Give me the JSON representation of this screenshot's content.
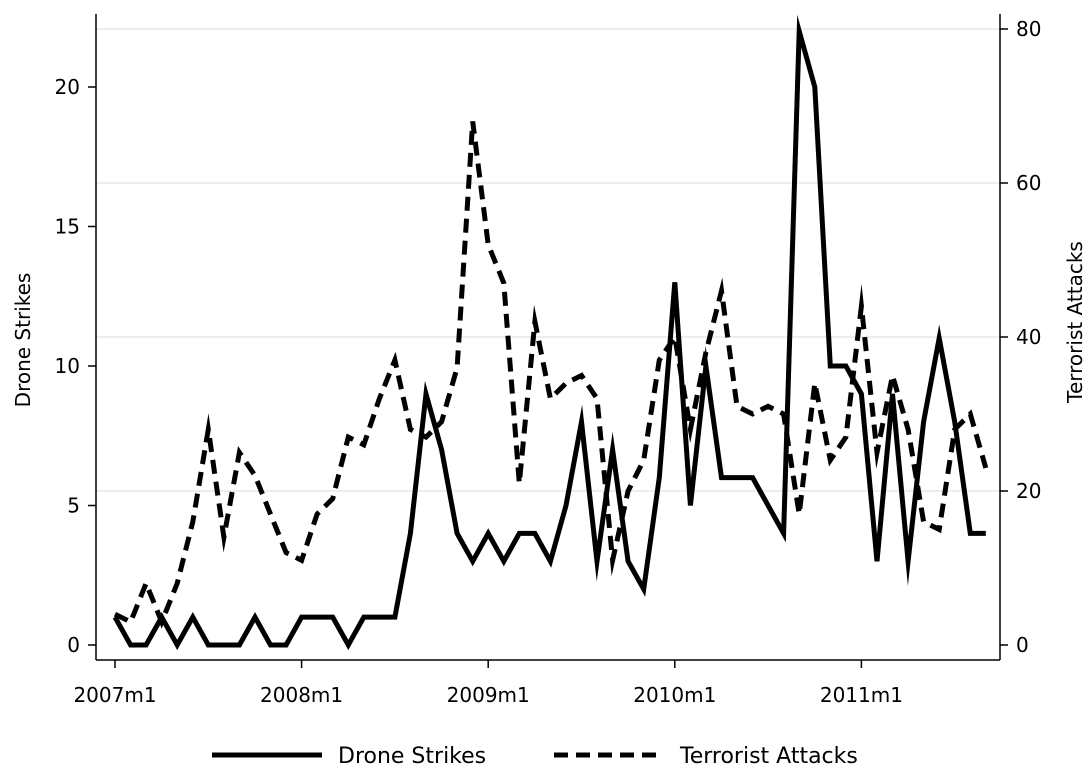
{
  "chart_data": {
    "type": "line",
    "xlabel": "",
    "ylabel_left": "Drone Strikes",
    "ylabel_right": "Terrorist Attacks",
    "x_ticks": [
      "2007m1",
      "2008m1",
      "2009m1",
      "2010m1",
      "2011m1"
    ],
    "ylim_left": [
      0,
      22
    ],
    "yticks_left": [
      0,
      5,
      10,
      15,
      20
    ],
    "ylim_right": [
      0,
      80
    ],
    "yticks_right": [
      0,
      20,
      40,
      60,
      80
    ],
    "grid": true,
    "legend_position": "bottom",
    "series": [
      {
        "name": "Drone Strikes",
        "axis": "left",
        "style": "solid",
        "color": "#000000",
        "values": [
          1,
          0,
          0,
          1,
          0,
          1,
          0,
          0,
          0,
          1,
          0,
          0,
          1,
          1,
          1,
          0,
          1,
          1,
          1,
          4,
          9,
          7,
          4,
          3,
          4,
          3,
          4,
          4,
          3,
          5,
          8,
          3,
          7,
          3,
          2,
          6,
          13,
          5,
          10,
          6,
          6,
          6,
          5,
          4,
          22,
          20,
          10,
          10,
          9,
          3,
          9,
          3,
          8,
          11,
          8,
          4,
          4
        ]
      },
      {
        "name": "Terrorist Attacks",
        "axis": "right",
        "style": "dashed",
        "color": "#000000",
        "values": [
          4,
          3,
          8,
          3,
          8,
          16,
          28,
          14,
          25,
          22,
          17,
          12,
          11,
          17,
          19,
          27,
          26,
          32,
          37,
          28,
          27,
          29,
          36,
          68,
          52,
          47,
          21,
          42,
          32,
          34,
          35,
          32,
          11,
          20,
          24,
          37,
          40,
          28,
          38,
          46,
          31,
          30,
          31,
          30,
          17,
          34,
          24,
          27,
          44,
          25,
          35,
          28,
          16,
          15,
          28,
          30,
          23
        ]
      }
    ]
  }
}
